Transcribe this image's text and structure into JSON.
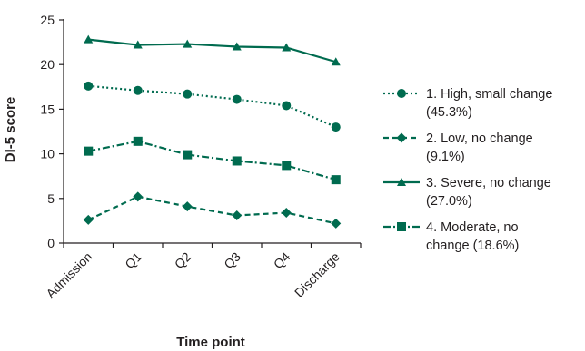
{
  "chart_data": {
    "type": "line",
    "title": "",
    "xlabel": "Time point",
    "ylabel": "DI-5 score",
    "ylim": [
      0,
      25
    ],
    "yticks": [
      "0",
      "5",
      "10",
      "15",
      "20",
      "25"
    ],
    "categories": [
      "Admission",
      "Q1",
      "Q2",
      "Q3",
      "Q4",
      "Discharge"
    ],
    "grid": false,
    "legend_position": "right",
    "color": "#006b4f",
    "series": [
      {
        "name": "1. High, small change (45.3%)",
        "legend_lines": [
          "1. High, small change",
          "(45.3%)"
        ],
        "marker": "circle",
        "dash": "dotted",
        "values": [
          17.6,
          17.1,
          16.7,
          16.1,
          15.4,
          13.0
        ]
      },
      {
        "name": "2. Low, no change (9.1%)",
        "legend_lines": [
          "2. Low, no change",
          "(9.1%)"
        ],
        "marker": "diamond",
        "dash": "dashed",
        "values": [
          2.6,
          5.2,
          4.1,
          3.1,
          3.4,
          2.2
        ]
      },
      {
        "name": "3. Severe, no change (27.0%)",
        "legend_lines": [
          "3. Severe, no change",
          "(27.0%)"
        ],
        "marker": "triangle",
        "dash": "solid",
        "values": [
          22.8,
          22.2,
          22.3,
          22.0,
          21.9,
          20.3
        ]
      },
      {
        "name": "4. Moderate, no change (18.6%)",
        "legend_lines": [
          "4. Moderate, no",
          "change (18.6%)"
        ],
        "marker": "square",
        "dash": "dashdot",
        "values": [
          10.3,
          11.4,
          9.9,
          9.2,
          8.7,
          7.1
        ]
      }
    ]
  }
}
